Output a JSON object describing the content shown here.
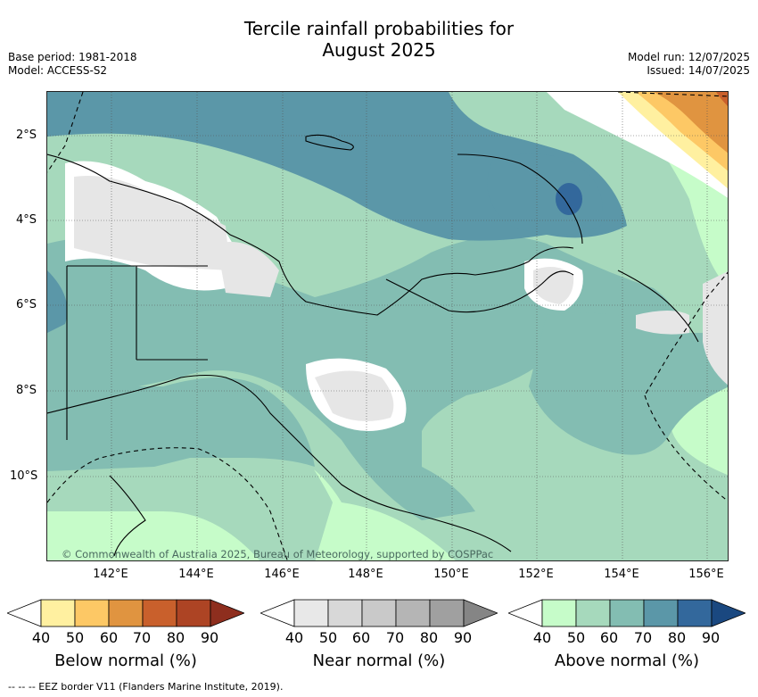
{
  "title_line1": "Tercile rainfall probabilities for",
  "title_line2": "August 2025",
  "base_period": "Base period: 1981-2018",
  "model": "Model: ACCESS-S2",
  "model_run": "Model run: 12/07/2025",
  "issued": "Issued: 14/07/2025",
  "lat_labels": [
    "2°S",
    "4°S",
    "6°S",
    "8°S",
    "10°S"
  ],
  "lon_labels": [
    "142°E",
    "144°E",
    "146°E",
    "148°E",
    "150°E",
    "152°E",
    "154°E",
    "156°E"
  ],
  "copyright": "© Commonwealth of Australia 2025, Bureau of Meteorology, supported by COSPPac",
  "legends": [
    {
      "title": "Below normal (%)",
      "ticks": [
        "40",
        "50",
        "60",
        "70",
        "80",
        "90"
      ],
      "colors": [
        "#ffffff",
        "#fff0a0",
        "#fdc865",
        "#e09440",
        "#c9602c",
        "#ad4424",
        "#8e2e1e"
      ]
    },
    {
      "title": "Near normal (%)",
      "ticks": [
        "40",
        "50",
        "60",
        "70",
        "80",
        "90"
      ],
      "colors": [
        "#ffffff",
        "#e8e8e8",
        "#d8d8d8",
        "#c9c9c9",
        "#b5b5b5",
        "#a0a0a0",
        "#858585"
      ]
    },
    {
      "title": "Above normal (%)",
      "ticks": [
        "40",
        "50",
        "60",
        "70",
        "80",
        "90"
      ],
      "colors": [
        "#ffffff",
        "#c6fcc9",
        "#a6d9bc",
        "#83bdb2",
        "#5b97a8",
        "#33689c",
        "#1a4880"
      ]
    }
  ],
  "footer": "--  --  -- EEZ border V11 (Flanders Marine Institute, 2019)."
}
